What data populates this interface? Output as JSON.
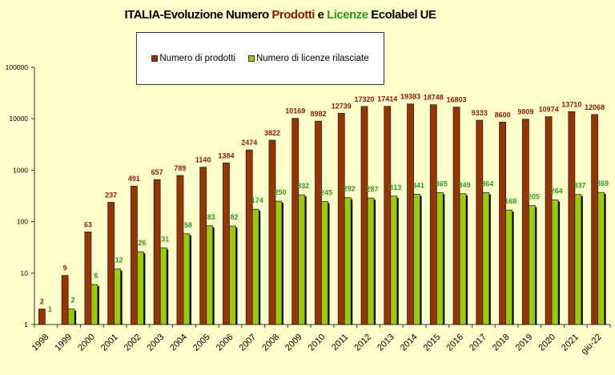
{
  "chart_data": {
    "type": "bar",
    "title": {
      "part1": "ITALIA-Evoluzione Numero ",
      "part2": "Prodotti",
      "part3": " e  ",
      "part4": "Licenze",
      "part5": " Ecolabel UE"
    },
    "categories": [
      "1998",
      "1999",
      "2000",
      "2001",
      "2002",
      "2003",
      "2004",
      "2005",
      "2006",
      "2007",
      "2008",
      "2009",
      "2010",
      "2011",
      "2012",
      "2013",
      "2014",
      "2015",
      "2016",
      "2017",
      "2018",
      "2019",
      "2020",
      "2021",
      "giu-22"
    ],
    "series": [
      {
        "name": "Numero di prodotti",
        "color": "#993300",
        "label_color": "#8B1A00",
        "values": [
          2,
          9,
          63,
          237,
          491,
          657,
          789,
          1140,
          1384,
          2474,
          3822,
          10169,
          8982,
          12739,
          17320,
          17414,
          19383,
          18748,
          16803,
          9333,
          8600,
          9809,
          10974,
          13710,
          12068
        ]
      },
      {
        "name": "Numero di licenze rilasciate",
        "color": "#99CC00",
        "label_color": "#2E9A1A",
        "values": [
          1,
          2,
          6,
          12,
          26,
          31,
          58,
          83,
          82,
          174,
          250,
          332,
          245,
          292,
          287,
          313,
          341,
          365,
          349,
          364,
          168,
          205,
          264,
          337,
          369
        ]
      }
    ],
    "yscale": "log",
    "ylim": [
      1,
      100000
    ],
    "yticks": [
      "1",
      "10",
      "100",
      "1000",
      "10000",
      "100000"
    ],
    "grid": false,
    "legend_position": "top",
    "background": "#FFFFCC"
  }
}
